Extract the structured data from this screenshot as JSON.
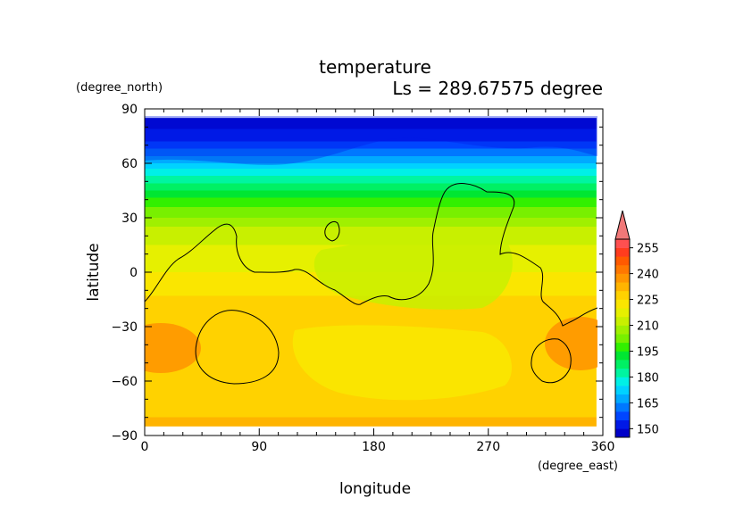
{
  "chart_data": {
    "type": "heatmap",
    "title": "temperature",
    "subtitle": "Ls = 289.67575 degree",
    "xlabel": "longitude",
    "ylabel": "latitude",
    "xunit": "(degree_east)",
    "yunit": "(degree_north)",
    "xlim": [
      0,
      360
    ],
    "ylim": [
      -90,
      90
    ],
    "data_lat_extent": [
      -85,
      85
    ],
    "xticks": [
      0,
      90,
      180,
      270,
      360
    ],
    "yticks": [
      -90,
      -60,
      -30,
      0,
      30,
      60,
      90
    ],
    "x_tick_labels": [
      "0",
      "90",
      "180",
      "270",
      "360"
    ],
    "y_tick_labels": [
      "−90",
      "−60",
      "−30",
      "0",
      "30",
      "60",
      "90"
    ],
    "colorbar": {
      "levels": [
        145,
        150,
        155,
        160,
        165,
        170,
        175,
        180,
        185,
        190,
        195,
        200,
        205,
        210,
        215,
        220,
        225,
        230,
        235,
        240,
        245,
        250,
        255,
        260
      ],
      "labels": [
        150,
        165,
        180,
        195,
        210,
        225,
        240,
        255
      ],
      "colors": [
        "#0000c8",
        "#0019e6",
        "#0046ff",
        "#0078ff",
        "#00aaff",
        "#00d2ff",
        "#00f0e6",
        "#00f5a0",
        "#00f064",
        "#00e632",
        "#32f000",
        "#78f000",
        "#a0f000",
        "#c8f000",
        "#e6f000",
        "#fae600",
        "#ffd200",
        "#ffb400",
        "#ff9600",
        "#ff7800",
        "#ff5a00",
        "#ff3c1e",
        "#ff5050",
        "#f07878"
      ],
      "extend": "max"
    },
    "latitude_temperature_profile": [
      {
        "lat": 85,
        "t": 147
      },
      {
        "lat": 75,
        "t": 152
      },
      {
        "lat": 70,
        "t": 158
      },
      {
        "lat": 62,
        "t": 168
      },
      {
        "lat": 55,
        "t": 178
      },
      {
        "lat": 48,
        "t": 187
      },
      {
        "lat": 40,
        "t": 197
      },
      {
        "lat": 32,
        "t": 204
      },
      {
        "lat": 25,
        "t": 210
      },
      {
        "lat": 15,
        "t": 215
      },
      {
        "lat": 5,
        "t": 218
      },
      {
        "lat": -5,
        "t": 222
      },
      {
        "lat": -15,
        "t": 226
      },
      {
        "lat": -20,
        "t": 229
      },
      {
        "lat": -30,
        "t": 228
      },
      {
        "lat": -45,
        "t": 226
      },
      {
        "lat": -60,
        "t": 225
      },
      {
        "lat": -75,
        "t": 229
      },
      {
        "lat": -85,
        "t": 231
      }
    ]
  }
}
